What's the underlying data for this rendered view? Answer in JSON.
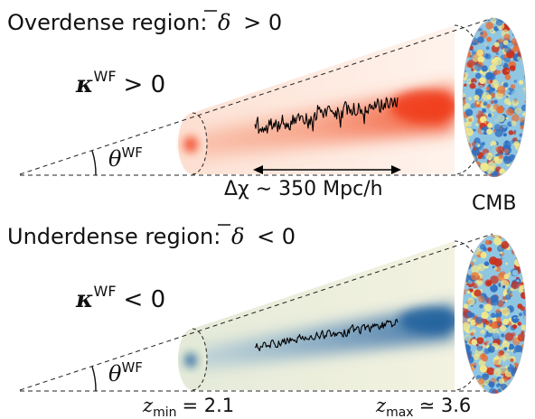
{
  "panels": [
    {
      "id": "overdense",
      "title_prefix": "Overdense region:",
      "delta_symbol": "δ",
      "title_relation": "> 0",
      "kappa_symbol": "κ",
      "kappa_sup": "WF",
      "kappa_relation": "> 0",
      "theta_symbol": "θ",
      "theta_sup": "WF",
      "distance_label": "Δχ ∼ 350 Mpc/h",
      "cmb_label": "CMB",
      "colors": {
        "cone_core": "#f03a14",
        "cone_edge": "#fdebe3",
        "signal": "#000000"
      }
    },
    {
      "id": "underdense",
      "title_prefix": "Underdense region:",
      "delta_symbol": "δ",
      "title_relation": "< 0",
      "kappa_symbol": "κ",
      "kappa_sup": "WF",
      "kappa_relation": "< 0",
      "theta_symbol": "θ",
      "theta_sup": "WF",
      "zmin_symbol": "z",
      "zmin_sub": "min",
      "zmin_relation": "= 2.1",
      "zmax_symbol": "z",
      "zmax_sub": "max",
      "zmax_relation": "≃ 3.6",
      "colors": {
        "cone_core": "#1f5e9c",
        "cone_edge": "#f1f0d8",
        "signal": "#000000"
      }
    }
  ],
  "cmb_colors": {
    "cold": "#2f6fc2",
    "cool": "#8fc6e2",
    "mid": "#f2e88a",
    "warm": "#e7703a",
    "hot": "#c9301e"
  }
}
